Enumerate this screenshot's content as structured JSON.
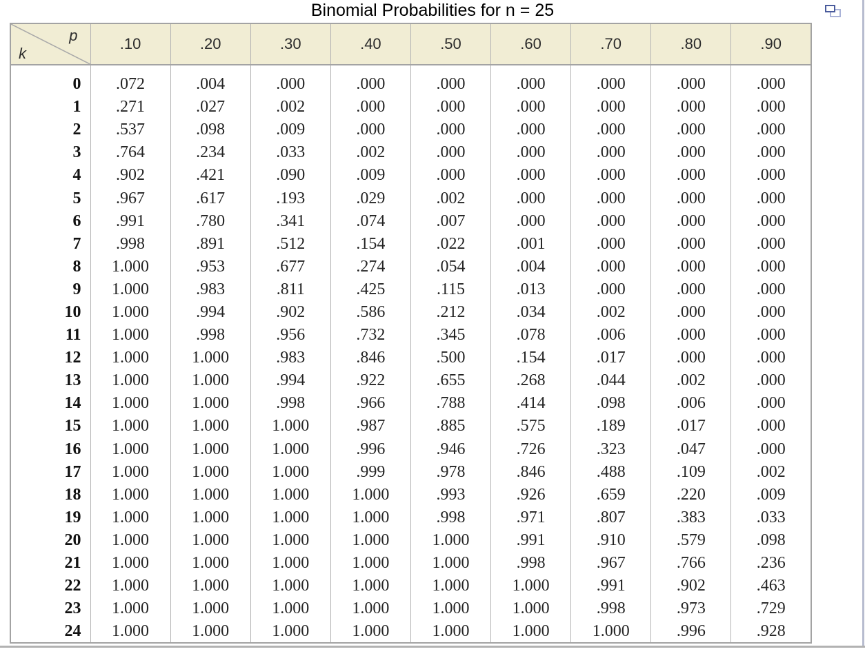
{
  "header": {
    "title": "Binomial Probabilities for n = 25"
  },
  "icons": {
    "popout": "open-in-new-window-icon"
  },
  "colors": {
    "header_bg": "#f1edd4",
    "grid_line": "#b3b3b3",
    "outer_border": "#a3a3a3",
    "icon_front": "#4a5b9c",
    "icon_back": "#aab3d8",
    "frame_rule": "#b2b2b2"
  },
  "chart_data": {
    "type": "table",
    "title": "Binomial Probabilities for n = 25",
    "corner_col_label": "p",
    "corner_row_label": "k",
    "columns": [
      ".10",
      ".20",
      ".30",
      ".40",
      ".50",
      ".60",
      ".70",
      ".80",
      ".90"
    ],
    "rows": [
      {
        "k": "0",
        "values": [
          ".072",
          ".004",
          ".000",
          ".000",
          ".000",
          ".000",
          ".000",
          ".000",
          ".000"
        ]
      },
      {
        "k": "1",
        "values": [
          ".271",
          ".027",
          ".002",
          ".000",
          ".000",
          ".000",
          ".000",
          ".000",
          ".000"
        ]
      },
      {
        "k": "2",
        "values": [
          ".537",
          ".098",
          ".009",
          ".000",
          ".000",
          ".000",
          ".000",
          ".000",
          ".000"
        ]
      },
      {
        "k": "3",
        "values": [
          ".764",
          ".234",
          ".033",
          ".002",
          ".000",
          ".000",
          ".000",
          ".000",
          ".000"
        ]
      },
      {
        "k": "4",
        "values": [
          ".902",
          ".421",
          ".090",
          ".009",
          ".000",
          ".000",
          ".000",
          ".000",
          ".000"
        ]
      },
      {
        "k": "5",
        "values": [
          ".967",
          ".617",
          ".193",
          ".029",
          ".002",
          ".000",
          ".000",
          ".000",
          ".000"
        ]
      },
      {
        "k": "6",
        "values": [
          ".991",
          ".780",
          ".341",
          ".074",
          ".007",
          ".000",
          ".000",
          ".000",
          ".000"
        ]
      },
      {
        "k": "7",
        "values": [
          ".998",
          ".891",
          ".512",
          ".154",
          ".022",
          ".001",
          ".000",
          ".000",
          ".000"
        ]
      },
      {
        "k": "8",
        "values": [
          "1.000",
          ".953",
          ".677",
          ".274",
          ".054",
          ".004",
          ".000",
          ".000",
          ".000"
        ]
      },
      {
        "k": "9",
        "values": [
          "1.000",
          ".983",
          ".811",
          ".425",
          ".115",
          ".013",
          ".000",
          ".000",
          ".000"
        ]
      },
      {
        "k": "10",
        "values": [
          "1.000",
          ".994",
          ".902",
          ".586",
          ".212",
          ".034",
          ".002",
          ".000",
          ".000"
        ]
      },
      {
        "k": "11",
        "values": [
          "1.000",
          ".998",
          ".956",
          ".732",
          ".345",
          ".078",
          ".006",
          ".000",
          ".000"
        ]
      },
      {
        "k": "12",
        "values": [
          "1.000",
          "1.000",
          ".983",
          ".846",
          ".500",
          ".154",
          ".017",
          ".000",
          ".000"
        ]
      },
      {
        "k": "13",
        "values": [
          "1.000",
          "1.000",
          ".994",
          ".922",
          ".655",
          ".268",
          ".044",
          ".002",
          ".000"
        ]
      },
      {
        "k": "14",
        "values": [
          "1.000",
          "1.000",
          ".998",
          ".966",
          ".788",
          ".414",
          ".098",
          ".006",
          ".000"
        ]
      },
      {
        "k": "15",
        "values": [
          "1.000",
          "1.000",
          "1.000",
          ".987",
          ".885",
          ".575",
          ".189",
          ".017",
          ".000"
        ]
      },
      {
        "k": "16",
        "values": [
          "1.000",
          "1.000",
          "1.000",
          ".996",
          ".946",
          ".726",
          ".323",
          ".047",
          ".000"
        ]
      },
      {
        "k": "17",
        "values": [
          "1.000",
          "1.000",
          "1.000",
          ".999",
          ".978",
          ".846",
          ".488",
          ".109",
          ".002"
        ]
      },
      {
        "k": "18",
        "values": [
          "1.000",
          "1.000",
          "1.000",
          "1.000",
          ".993",
          ".926",
          ".659",
          ".220",
          ".009"
        ]
      },
      {
        "k": "19",
        "values": [
          "1.000",
          "1.000",
          "1.000",
          "1.000",
          ".998",
          ".971",
          ".807",
          ".383",
          ".033"
        ]
      },
      {
        "k": "20",
        "values": [
          "1.000",
          "1.000",
          "1.000",
          "1.000",
          "1.000",
          ".991",
          ".910",
          ".579",
          ".098"
        ]
      },
      {
        "k": "21",
        "values": [
          "1.000",
          "1.000",
          "1.000",
          "1.000",
          "1.000",
          ".998",
          ".967",
          ".766",
          ".236"
        ]
      },
      {
        "k": "22",
        "values": [
          "1.000",
          "1.000",
          "1.000",
          "1.000",
          "1.000",
          "1.000",
          ".991",
          ".902",
          ".463"
        ]
      },
      {
        "k": "23",
        "values": [
          "1.000",
          "1.000",
          "1.000",
          "1.000",
          "1.000",
          "1.000",
          ".998",
          ".973",
          ".729"
        ]
      },
      {
        "k": "24",
        "values": [
          "1.000",
          "1.000",
          "1.000",
          "1.000",
          "1.000",
          "1.000",
          "1.000",
          ".996",
          ".928"
        ]
      }
    ]
  }
}
